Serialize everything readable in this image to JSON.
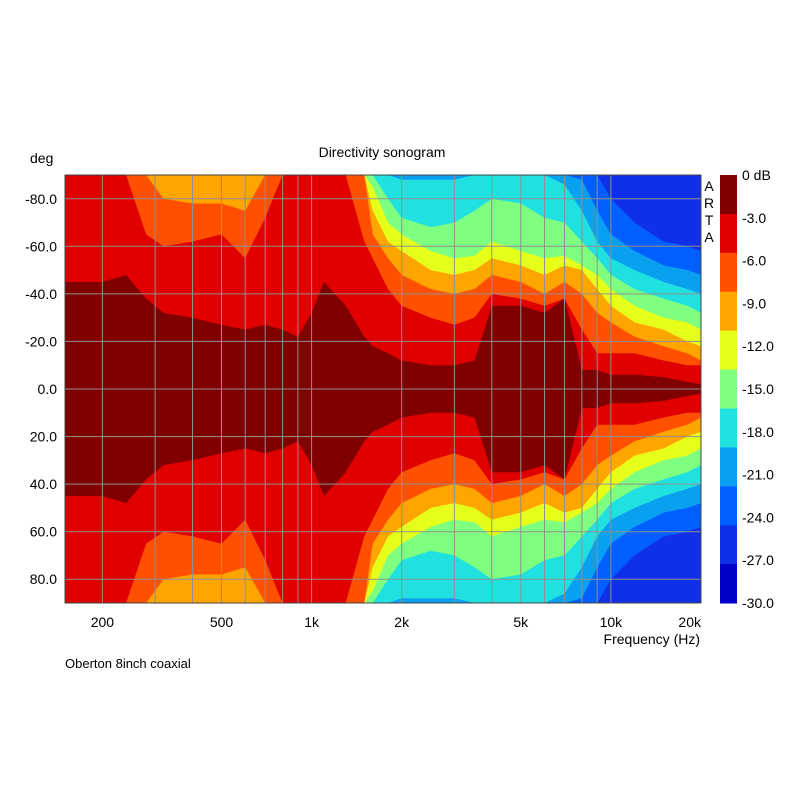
{
  "chart_data": {
    "type": "heatmap",
    "title": "Directivity sonogram",
    "ylabel": "deg",
    "xlabel": "Frequency (Hz)",
    "brand": "ARTA",
    "footnote": "Oberton 8inch coaxial",
    "x_scale": "log",
    "xlim": [
      150,
      20000
    ],
    "ylim": [
      -90,
      90
    ],
    "y_ticks": [
      {
        "value": -80,
        "label": "-80.0"
      },
      {
        "value": -60,
        "label": "-60.0"
      },
      {
        "value": -40,
        "label": "-40.0"
      },
      {
        "value": -20,
        "label": "-20.0"
      },
      {
        "value": 0,
        "label": "0.0"
      },
      {
        "value": 20,
        "label": "20.0"
      },
      {
        "value": 40,
        "label": "40.0"
      },
      {
        "value": 60,
        "label": "60.0"
      },
      {
        "value": 80,
        "label": "80.0"
      }
    ],
    "x_ticks": [
      {
        "value": 200,
        "label": "200"
      },
      {
        "value": 500,
        "label": "500"
      },
      {
        "value": 1000,
        "label": "1k"
      },
      {
        "value": 2000,
        "label": "2k"
      },
      {
        "value": 5000,
        "label": "5k"
      },
      {
        "value": 10000,
        "label": "10k"
      },
      {
        "value": 20000,
        "label": "20k"
      }
    ],
    "grid": true,
    "legend_position": "right",
    "colorbar": {
      "unit": "dB",
      "labels": [
        "0 dB",
        "-3.0",
        "-6.0",
        "-9.0",
        "-12.0",
        "-15.0",
        "-18.0",
        "-21.0",
        "-24.0",
        "-27.0",
        "-30.0"
      ],
      "colors": [
        "#800000",
        "#e00000",
        "#ff5000",
        "#ffa500",
        "#e6ff1a",
        "#7fff80",
        "#20e0e0",
        "#0aa0f0",
        "#0060ff",
        "#1030e8",
        "#0000c8"
      ]
    },
    "contours": {
      "level_db": [
        -3,
        -6,
        -9,
        -12,
        -15,
        -18,
        -21,
        -24,
        -27
      ],
      "frequency_hz": [
        150,
        170,
        200,
        240,
        280,
        320,
        400,
        500,
        600,
        700,
        800,
        900,
        1000,
        1100,
        1300,
        1500,
        1600,
        1800,
        2000,
        2500,
        3000,
        3500,
        4000,
        5000,
        6000,
        7000,
        8000,
        9000,
        10000,
        12000,
        15000,
        18000,
        20000
      ],
      "angle_deg": [
        [
          45,
          45,
          45,
          48,
          38,
          32,
          30,
          27,
          25,
          27,
          25,
          22,
          32,
          45,
          35,
          22,
          18,
          15,
          12,
          10,
          10,
          12,
          35,
          35,
          32,
          38,
          8,
          8,
          6,
          6,
          5,
          3,
          2
        ],
        [
          90,
          90,
          90,
          90,
          65,
          60,
          62,
          65,
          55,
          72,
          90,
          90,
          90,
          90,
          90,
          62,
          55,
          42,
          35,
          30,
          27,
          30,
          40,
          38,
          35,
          38,
          25,
          15,
          15,
          15,
          12,
          10,
          10
        ],
        [
          90,
          90,
          90,
          90,
          90,
          80,
          78,
          78,
          75,
          90,
          90,
          90,
          90,
          90,
          90,
          90,
          65,
          55,
          48,
          42,
          40,
          42,
          48,
          45,
          40,
          45,
          40,
          32,
          28,
          22,
          18,
          15,
          12
        ],
        [
          90,
          90,
          90,
          90,
          90,
          90,
          90,
          90,
          90,
          90,
          90,
          90,
          90,
          90,
          90,
          90,
          75,
          62,
          58,
          50,
          48,
          50,
          55,
          52,
          48,
          52,
          50,
          42,
          35,
          28,
          25,
          20,
          18
        ],
        [
          90,
          90,
          90,
          90,
          90,
          90,
          90,
          90,
          90,
          90,
          90,
          90,
          90,
          90,
          90,
          90,
          85,
          70,
          65,
          58,
          55,
          56,
          62,
          58,
          55,
          56,
          52,
          48,
          42,
          35,
          30,
          28,
          25
        ],
        [
          90,
          90,
          90,
          90,
          90,
          90,
          90,
          90,
          90,
          90,
          90,
          90,
          90,
          90,
          90,
          90,
          90,
          80,
          72,
          68,
          70,
          75,
          80,
          78,
          72,
          70,
          62,
          55,
          48,
          42,
          38,
          35,
          32
        ],
        [
          90,
          90,
          90,
          90,
          90,
          90,
          90,
          90,
          90,
          90,
          90,
          90,
          90,
          90,
          90,
          90,
          90,
          90,
          88,
          88,
          88,
          90,
          90,
          90,
          90,
          86,
          75,
          62,
          55,
          50,
          45,
          42,
          40
        ],
        [
          90,
          90,
          90,
          90,
          90,
          90,
          90,
          90,
          90,
          90,
          90,
          90,
          90,
          90,
          90,
          90,
          90,
          90,
          90,
          90,
          90,
          90,
          90,
          90,
          90,
          90,
          88,
          75,
          65,
          58,
          52,
          50,
          48
        ],
        [
          90,
          90,
          90,
          90,
          90,
          90,
          90,
          90,
          90,
          90,
          90,
          90,
          90,
          90,
          90,
          90,
          90,
          90,
          90,
          90,
          90,
          90,
          90,
          90,
          90,
          90,
          90,
          90,
          80,
          70,
          62,
          60,
          58
        ]
      ]
    }
  }
}
